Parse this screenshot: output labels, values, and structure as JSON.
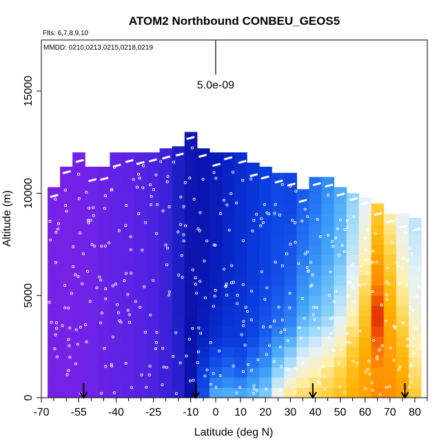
{
  "chart_data": {
    "type": "heatmap",
    "title": "ATOM2 Northbound CONBEU_GEOS5",
    "flights_note": "Flts: 6,7,8,9,10",
    "dates_note": "MMDD: 0210,0213,0215,0218,0219",
    "xlabel": "Latitude (deg N)",
    "ylabel": "Altitude (m)",
    "xlim": [
      -70,
      85
    ],
    "ylim": [
      0,
      17500
    ],
    "x_ticks": [
      -70,
      -55,
      -40,
      -25,
      -10,
      0,
      10,
      20,
      30,
      40,
      50,
      60,
      70,
      80
    ],
    "x_tick_labels": [
      "-70",
      "-55",
      "-40",
      "-25",
      "-10",
      "0",
      "10",
      "20",
      "30",
      "40",
      "50",
      "60",
      "70",
      "80"
    ],
    "y_ticks": [
      0,
      5000,
      10000,
      15000
    ],
    "y_tick_labels": [
      "0",
      "5000",
      "10000",
      "15000"
    ],
    "scale_bar": {
      "label": "5.0e-09",
      "x": 0,
      "y_from": 15800,
      "y_to": 17500
    },
    "arrows_at_latitude": [
      -53,
      -8,
      39,
      76
    ],
    "colormap": [
      "#7f1fe6",
      "#6f22e8",
      "#4a22e0",
      "#2020c8",
      "#0a10a8",
      "#0820c0",
      "#0a3ee0",
      "#1e64f0",
      "#3ea0f8",
      "#8ad2fa",
      "#e6f2fa",
      "#fff0b0",
      "#ffd040",
      "#ffb000",
      "#ff9000",
      "#ee4c00",
      "#cc1000"
    ],
    "columns": [
      {
        "lat": -65,
        "top": 10300,
        "profile": [
          [
            0,
            0.5
          ],
          [
            17500,
            0.5
          ]
        ]
      },
      {
        "lat": -60,
        "top": 11300,
        "profile": [
          [
            0,
            0.5
          ],
          [
            17500,
            0.5
          ]
        ]
      },
      {
        "lat": -55,
        "top": 12000,
        "profile": [
          [
            0,
            0.7
          ],
          [
            17500,
            0.7
          ]
        ]
      },
      {
        "lat": -50,
        "top": 11300,
        "profile": [
          [
            0,
            1
          ],
          [
            17500,
            1
          ]
        ]
      },
      {
        "lat": -45,
        "top": 11300,
        "profile": [
          [
            0,
            1.2
          ],
          [
            17500,
            1.2
          ]
        ]
      },
      {
        "lat": -40,
        "top": 12000,
        "profile": [
          [
            0,
            1.4
          ],
          [
            17500,
            1.4
          ]
        ]
      },
      {
        "lat": -35,
        "top": 12000,
        "profile": [
          [
            0,
            1.5
          ],
          [
            17500,
            1.5
          ]
        ]
      },
      {
        "lat": -30,
        "top": 12000,
        "profile": [
          [
            0,
            1.7
          ],
          [
            17500,
            1.7
          ]
        ]
      },
      {
        "lat": -25,
        "top": 12000,
        "profile": [
          [
            0,
            2
          ],
          [
            17500,
            2
          ]
        ]
      },
      {
        "lat": -20,
        "top": 12200,
        "profile": [
          [
            0,
            2.3
          ],
          [
            17500,
            2.3
          ]
        ]
      },
      {
        "lat": -15,
        "top": 12300,
        "profile": [
          [
            0,
            2.7
          ],
          [
            4000,
            3.1
          ],
          [
            17500,
            3.1
          ]
        ]
      },
      {
        "lat": -10,
        "top": 13000,
        "profile": [
          [
            0,
            4
          ],
          [
            2000,
            4.2
          ],
          [
            5000,
            3.8
          ],
          [
            17500,
            3.6
          ]
        ]
      },
      {
        "lat": -5,
        "top": 12200,
        "profile": [
          [
            0,
            6.5
          ],
          [
            1500,
            5.8
          ],
          [
            3000,
            5
          ],
          [
            6000,
            4.4
          ],
          [
            17500,
            4.2
          ]
        ]
      },
      {
        "lat": 0,
        "top": 12000,
        "profile": [
          [
            0,
            8.5
          ],
          [
            1000,
            7
          ],
          [
            3000,
            5.4
          ],
          [
            6000,
            4.8
          ],
          [
            17500,
            4.6
          ]
        ]
      },
      {
        "lat": 5,
        "top": 12000,
        "profile": [
          [
            0,
            8.5
          ],
          [
            1000,
            7.4
          ],
          [
            3000,
            5.8
          ],
          [
            6000,
            5.2
          ],
          [
            17500,
            5
          ]
        ]
      },
      {
        "lat": 10,
        "top": 12000,
        "profile": [
          [
            0,
            8.4
          ],
          [
            1500,
            6.6
          ],
          [
            3000,
            5.8
          ],
          [
            6000,
            5.5
          ],
          [
            17500,
            5.3
          ]
        ]
      },
      {
        "lat": 15,
        "top": 11500,
        "profile": [
          [
            0,
            8.5
          ],
          [
            1500,
            7.4
          ],
          [
            3000,
            6.2
          ],
          [
            6000,
            5.8
          ],
          [
            17500,
            5.5
          ]
        ]
      },
      {
        "lat": 20,
        "top": 11300,
        "profile": [
          [
            0,
            9
          ],
          [
            1500,
            7.8
          ],
          [
            3500,
            6.6
          ],
          [
            6000,
            6.1
          ],
          [
            17500,
            5.8
          ]
        ]
      },
      {
        "lat": 25,
        "top": 11000,
        "profile": [
          [
            0,
            10.5
          ],
          [
            1500,
            8.8
          ],
          [
            3500,
            7.2
          ],
          [
            6000,
            6.4
          ],
          [
            17500,
            6
          ]
        ]
      },
      {
        "lat": 30,
        "top": 11000,
        "profile": [
          [
            0,
            11.5
          ],
          [
            1500,
            9.6
          ],
          [
            3500,
            7.6
          ],
          [
            6000,
            6.8
          ],
          [
            9500,
            6.2
          ],
          [
            17500,
            6
          ]
        ]
      },
      {
        "lat": 35,
        "top": 10200,
        "profile": [
          [
            0,
            11.8
          ],
          [
            1500,
            10.4
          ],
          [
            4000,
            8.2
          ],
          [
            7000,
            7.3
          ],
          [
            10000,
            6.8
          ],
          [
            17500,
            6.5
          ]
        ]
      },
      {
        "lat": 40,
        "top": 10800,
        "profile": [
          [
            0,
            12
          ],
          [
            1500,
            10.8
          ],
          [
            4000,
            8.6
          ],
          [
            7000,
            7.7
          ],
          [
            10000,
            7.2
          ],
          [
            17500,
            7
          ]
        ]
      },
      {
        "lat": 45,
        "top": 10800,
        "profile": [
          [
            0,
            12.2
          ],
          [
            1500,
            11.2
          ],
          [
            4000,
            9
          ],
          [
            7000,
            8.1
          ],
          [
            10000,
            7.7
          ],
          [
            17500,
            7.5
          ]
        ]
      },
      {
        "lat": 50,
        "top": 10300,
        "profile": [
          [
            0,
            12.6
          ],
          [
            1500,
            11.8
          ],
          [
            4000,
            9.8
          ],
          [
            7000,
            8.6
          ],
          [
            10000,
            8.2
          ],
          [
            17500,
            8
          ]
        ]
      },
      {
        "lat": 55,
        "top": 10000,
        "profile": [
          [
            0,
            13
          ],
          [
            2000,
            12.4
          ],
          [
            4500,
            10.6
          ],
          [
            7000,
            9.6
          ],
          [
            10000,
            9
          ],
          [
            17500,
            8.8
          ]
        ]
      },
      {
        "lat": 60,
        "top": 9800,
        "profile": [
          [
            0,
            13.5
          ],
          [
            2000,
            13.2
          ],
          [
            4500,
            12.2
          ],
          [
            7000,
            10.8
          ],
          [
            9500,
            10
          ],
          [
            17500,
            9.8
          ]
        ]
      },
      {
        "lat": 65,
        "top": 9500,
        "profile": [
          [
            0,
            14.2
          ],
          [
            1000,
            13.8
          ],
          [
            2500,
            14.5
          ],
          [
            4000,
            15.5
          ],
          [
            5500,
            14.2
          ],
          [
            7500,
            13
          ],
          [
            9500,
            12
          ],
          [
            17500,
            11.5
          ]
        ]
      },
      {
        "lat": 70,
        "top": 9000,
        "profile": [
          [
            0,
            14
          ],
          [
            2000,
            13.6
          ],
          [
            4500,
            13
          ],
          [
            7000,
            12
          ],
          [
            9000,
            11
          ],
          [
            17500,
            10.5
          ]
        ]
      },
      {
        "lat": 75,
        "top": 9000,
        "profile": [
          [
            0,
            13.6
          ],
          [
            2000,
            12.8
          ],
          [
            4500,
            11.5
          ],
          [
            7000,
            10.5
          ],
          [
            9000,
            10
          ],
          [
            17500,
            9.5
          ]
        ]
      },
      {
        "lat": 80,
        "top": 8800,
        "profile": [
          [
            0,
            12.2
          ],
          [
            2500,
            11
          ],
          [
            5000,
            10.2
          ],
          [
            8000,
            9.6
          ],
          [
            17500,
            9.3
          ]
        ]
      }
    ],
    "descent_tracks": [
      {
        "lat_range": [
          -65,
          80
        ],
        "note": "sampled points"
      }
    ]
  }
}
